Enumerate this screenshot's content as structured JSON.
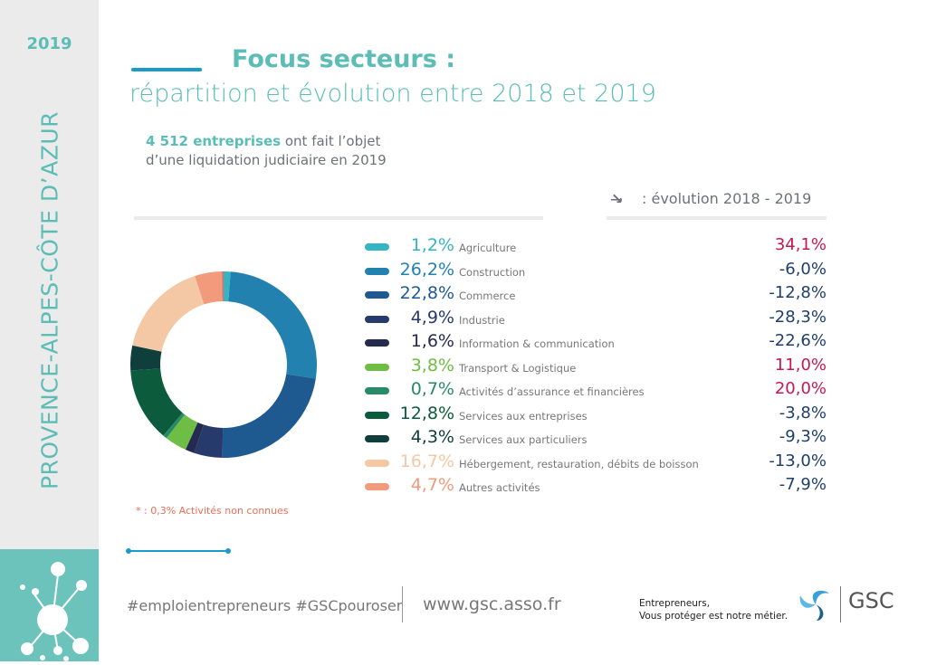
{
  "sidebar": {
    "year": "2019",
    "region": "PROVENCE-ALPES-CÔTE D’AZUR"
  },
  "header": {
    "title": "Focus secteurs :",
    "subtitle": "répartition et évolution entre 2018 et 2019"
  },
  "intro": {
    "highlight": "4 512 entreprises",
    "rest1": " ont fait l’objet",
    "line2": "d’une liquidation judiciaire en 2019"
  },
  "evolution_header": {
    "icon": "trend-down-icon",
    "label": ": évolution 2018 - 2019"
  },
  "chart_data": {
    "type": "pie",
    "variant": "donut",
    "title": "Focus secteurs : répartition et évolution entre 2018 et 2019",
    "unit": "%",
    "series": [
      {
        "name": "Agriculture",
        "value": 1.2,
        "evolution": "34,1%",
        "pct": "1,2%",
        "color": "#35b4c3",
        "evo_color": "#c8174f"
      },
      {
        "name": "Construction",
        "value": 26.2,
        "evolution": "-6,0%",
        "pct": "26,2%",
        "color": "#2281ae",
        "evo_color": "#1f3e6a"
      },
      {
        "name": "Commerce",
        "value": 22.8,
        "evolution": "-12,8%",
        "pct": "22,8%",
        "color": "#1e5a90",
        "evo_color": "#1f3e6a"
      },
      {
        "name": "Industrie",
        "value": 4.9,
        "evolution": "-28,3%",
        "pct": "4,9%",
        "color": "#273a6c",
        "evo_color": "#1f3e6a"
      },
      {
        "name": "Information & communication",
        "value": 1.6,
        "evolution": "-22,6%",
        "pct": "1,6%",
        "color": "#252a50",
        "evo_color": "#1f3e6a"
      },
      {
        "name": "Transport & Logistique",
        "value": 3.8,
        "evolution": "11,0%",
        "pct": "3,8%",
        "color": "#6ebd44",
        "evo_color": "#c8174f"
      },
      {
        "name": "Activités d’assurance et financières",
        "value": 0.7,
        "evolution": "20,0%",
        "pct": "0,7%",
        "color": "#2a8a67",
        "evo_color": "#c8174f"
      },
      {
        "name": "Services aux entreprises",
        "value": 12.8,
        "evolution": "-3,8%",
        "pct": "12,8%",
        "color": "#0b5b3c",
        "evo_color": "#1f3e6a"
      },
      {
        "name": "Services aux particuliers",
        "value": 4.3,
        "evolution": "-9,3%",
        "pct": "4,3%",
        "color": "#0f3f3c",
        "evo_color": "#1f3e6a"
      },
      {
        "name": "Hébergement, restauration, débits de boisson",
        "value": 16.7,
        "evolution": "-13,0%",
        "pct": "16,7%",
        "color": "#f4c8a4",
        "evo_color": "#1f3e6a"
      },
      {
        "name": "Autres activités",
        "value": 4.7,
        "evolution": "-7,9%",
        "pct": "4,7%",
        "color": "#f19b7c",
        "evo_color": "#1f3e6a"
      }
    ],
    "unknown": {
      "name": "Activités non connues",
      "value": 0.3,
      "color": "#e86a6a"
    },
    "note": "* : 0,3% Activités non connues"
  },
  "footer": {
    "hashtags": "#emploientrepreneurs #GSCpouroser",
    "url": "www.gsc.asso.fr",
    "tagline1": "Entrepreneurs,",
    "tagline2": "Vous protéger est notre métier.",
    "brand": "GSC"
  }
}
